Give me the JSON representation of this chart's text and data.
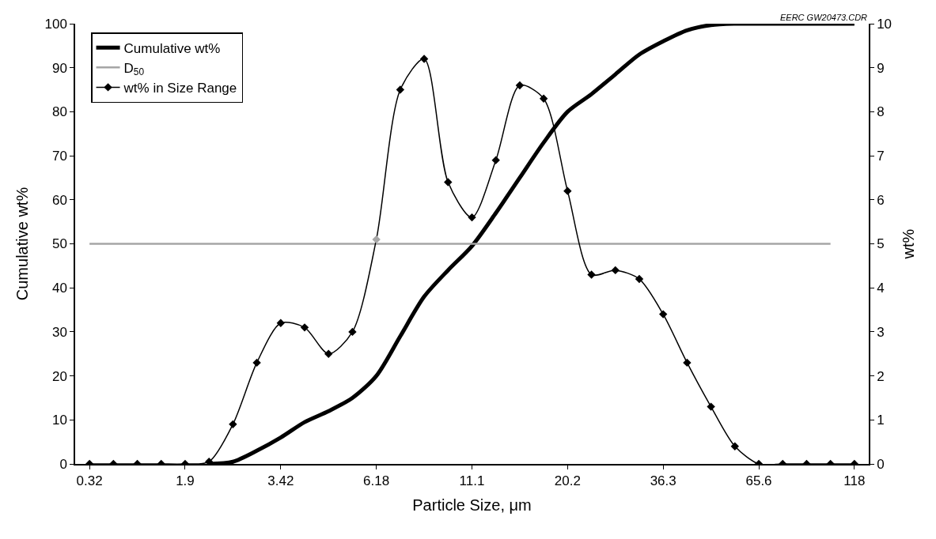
{
  "chart_data": {
    "type": "line",
    "xlabel": "Particle Size, μm",
    "ylabel": "Cumulative wt%",
    "y2label": "wt%",
    "annotations": [
      "EERC GW20473.CDR"
    ],
    "categories": [
      "0.32",
      null,
      null,
      null,
      "1.9",
      null,
      null,
      null,
      "3.42",
      null,
      null,
      null,
      "6.18",
      null,
      null,
      null,
      "11.1",
      null,
      null,
      null,
      "20.2",
      null,
      null,
      null,
      "36.3",
      null,
      null,
      null,
      "65.6",
      null,
      null,
      null,
      "118"
    ],
    "series": [
      {
        "name": "Cumulative wt%",
        "color": "#000000",
        "marker": "none",
        "values": [
          null,
          null,
          null,
          null,
          null,
          0,
          0.5,
          3,
          6,
          9.5,
          12,
          15,
          20,
          29,
          38,
          44,
          49.5,
          57,
          65,
          73,
          80,
          84,
          88.5,
          93,
          96,
          98.5,
          99.7,
          100,
          100,
          100,
          100,
          100,
          100
        ]
      },
      {
        "name": "D$_{50}$",
        "color": "#a6a6a6",
        "marker": "none",
        "values": [
          50,
          50,
          50,
          50,
          50,
          50,
          50,
          50,
          50,
          50,
          50,
          50,
          50,
          50,
          50,
          50,
          50,
          50,
          50,
          50,
          50,
          50,
          50,
          50,
          50,
          50,
          50,
          50,
          50,
          50,
          50,
          50,
          null
        ]
      },
      {
        "name": "wt% in Size Range",
        "color": "#000000",
        "marker": "diamond",
        "axis": "y2",
        "colors": [
          "#000000",
          "#000000",
          "#000000",
          "#000000",
          "#000000",
          "#000000",
          "#000000",
          "#000000",
          "#000000",
          "#000000",
          "#000000",
          "#000000",
          "#a6a6a6",
          "#000000",
          "#000000",
          "#000000",
          "#000000",
          "#000000",
          "#000000",
          "#000000",
          "#000000",
          "#000000",
          "#000000",
          "#000000",
          "#000000",
          "#000000",
          "#000000",
          "#000000",
          "#000000",
          "#000000",
          "#000000",
          "#000000",
          "#000000"
        ],
        "values": [
          0,
          0,
          0,
          0,
          0,
          0.05,
          0.9,
          2.3,
          3.2,
          3.1,
          2.5,
          3.0,
          5.1,
          8.5,
          9.2,
          6.4,
          5.6,
          6.9,
          8.6,
          8.3,
          6.2,
          4.3,
          4.4,
          4.2,
          3.4,
          2.3,
          1.3,
          0.4,
          0,
          0,
          0,
          0,
          0
        ]
      }
    ],
    "ylim": [
      0,
      100
    ],
    "yticks": [
      0,
      10,
      20,
      30,
      40,
      50,
      60,
      70,
      80,
      90,
      100
    ],
    "y2lim": [
      0,
      10
    ],
    "y2ticks": [
      0,
      1,
      2,
      3,
      4,
      5,
      6,
      7,
      8,
      9,
      10
    ],
    "legend": "top left"
  }
}
